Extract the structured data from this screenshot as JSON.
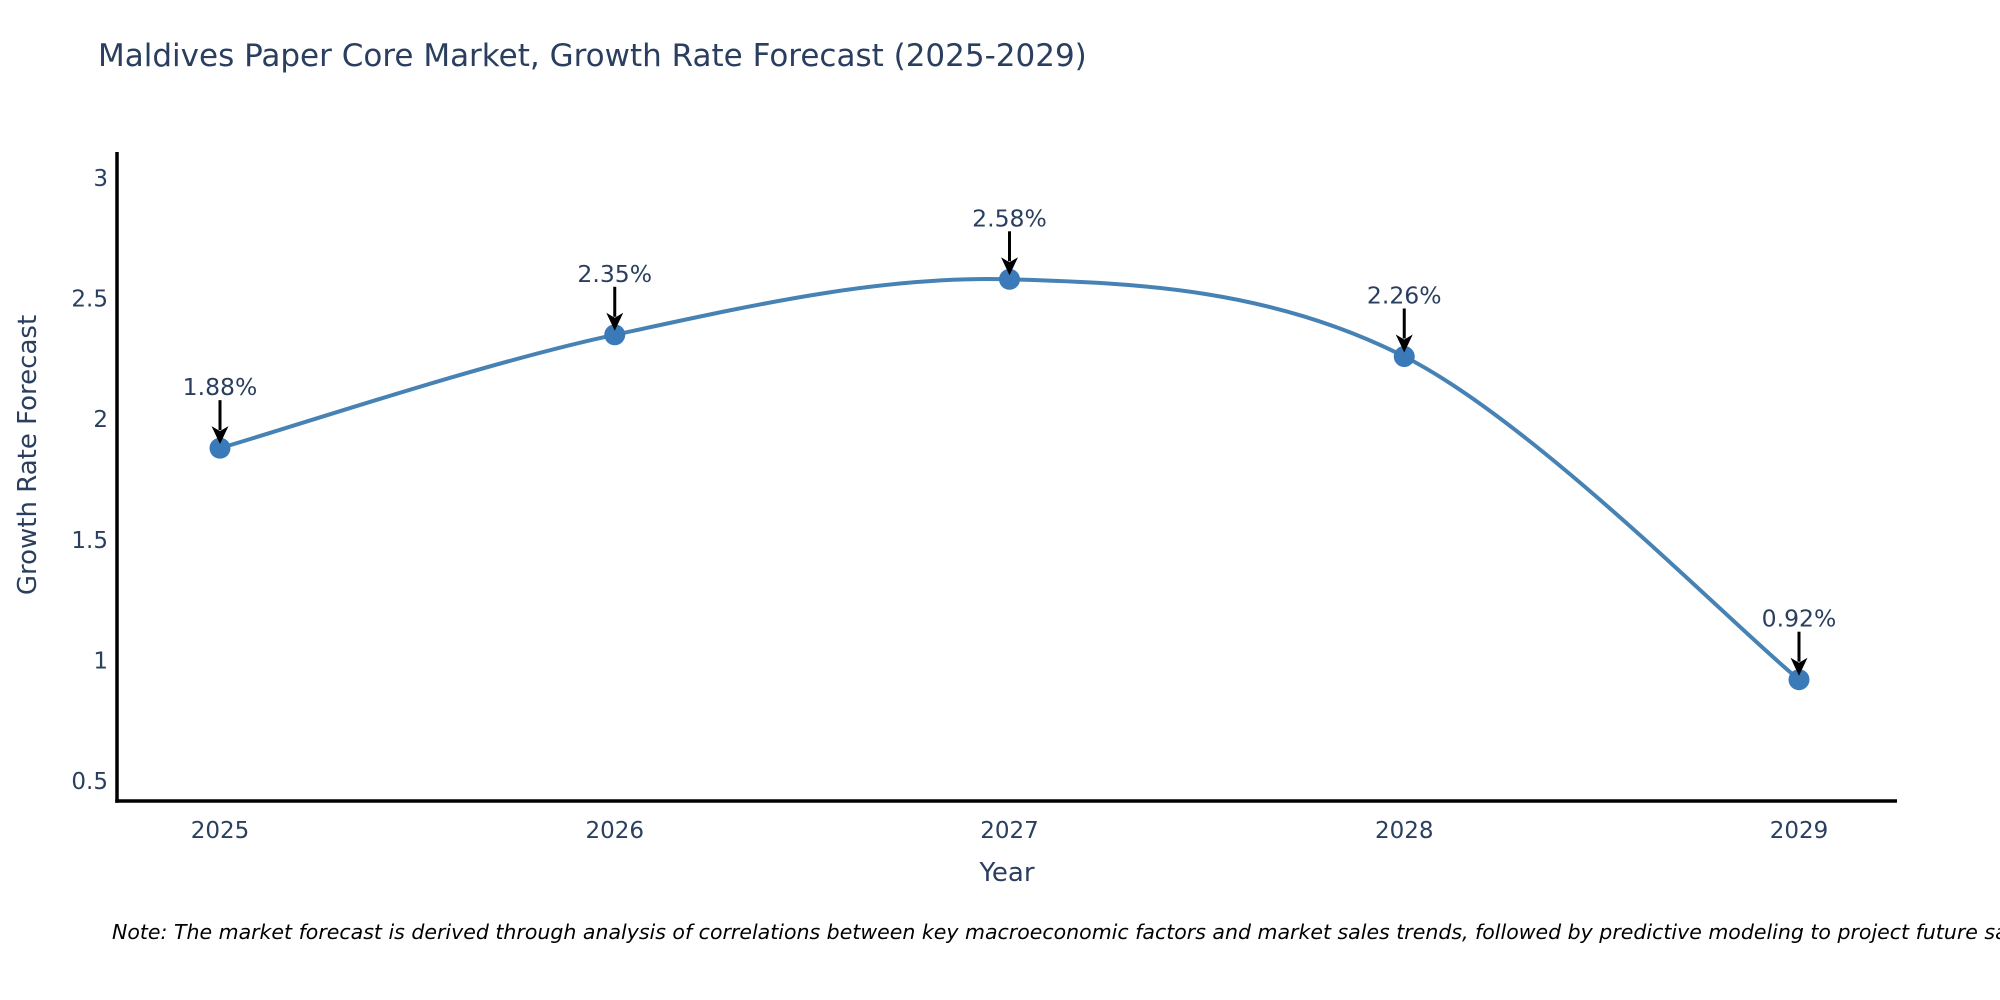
{
  "page": {
    "background": "#ffffff"
  },
  "chart_data": {
    "type": "line",
    "title": "Maldives Paper Core Market, Growth Rate Forecast (2025-2029)",
    "xlabel": "Year",
    "ylabel": "Growth Rate Forecast",
    "categories": [
      "2025",
      "2026",
      "2027",
      "2028",
      "2029"
    ],
    "values": [
      1.88,
      2.35,
      2.58,
      2.26,
      0.92
    ],
    "point_labels": [
      "1.88%",
      "2.35%",
      "2.58%",
      "2.26%",
      "0.92%"
    ],
    "ylim": [
      0.5,
      3
    ],
    "yticks": [
      0.5,
      1,
      1.5,
      2,
      2.5,
      3
    ],
    "ytick_labels": [
      "0.5",
      "1",
      "1.5",
      "2",
      "2.5",
      "3"
    ],
    "grid": false,
    "legend": "none",
    "line_shape": "spline",
    "colors": {
      "line": "#4682b4",
      "marker": "#3b7ab8",
      "axis": "#000000",
      "text": "#2a3f5f",
      "annotation_arrow": "#000000",
      "background": "#ffffff"
    }
  },
  "note": {
    "text": "Note: The market forecast is derived through analysis of correlations between key macroeconomic factors and market sales trends, followed by predictive modeling to project future sales"
  }
}
